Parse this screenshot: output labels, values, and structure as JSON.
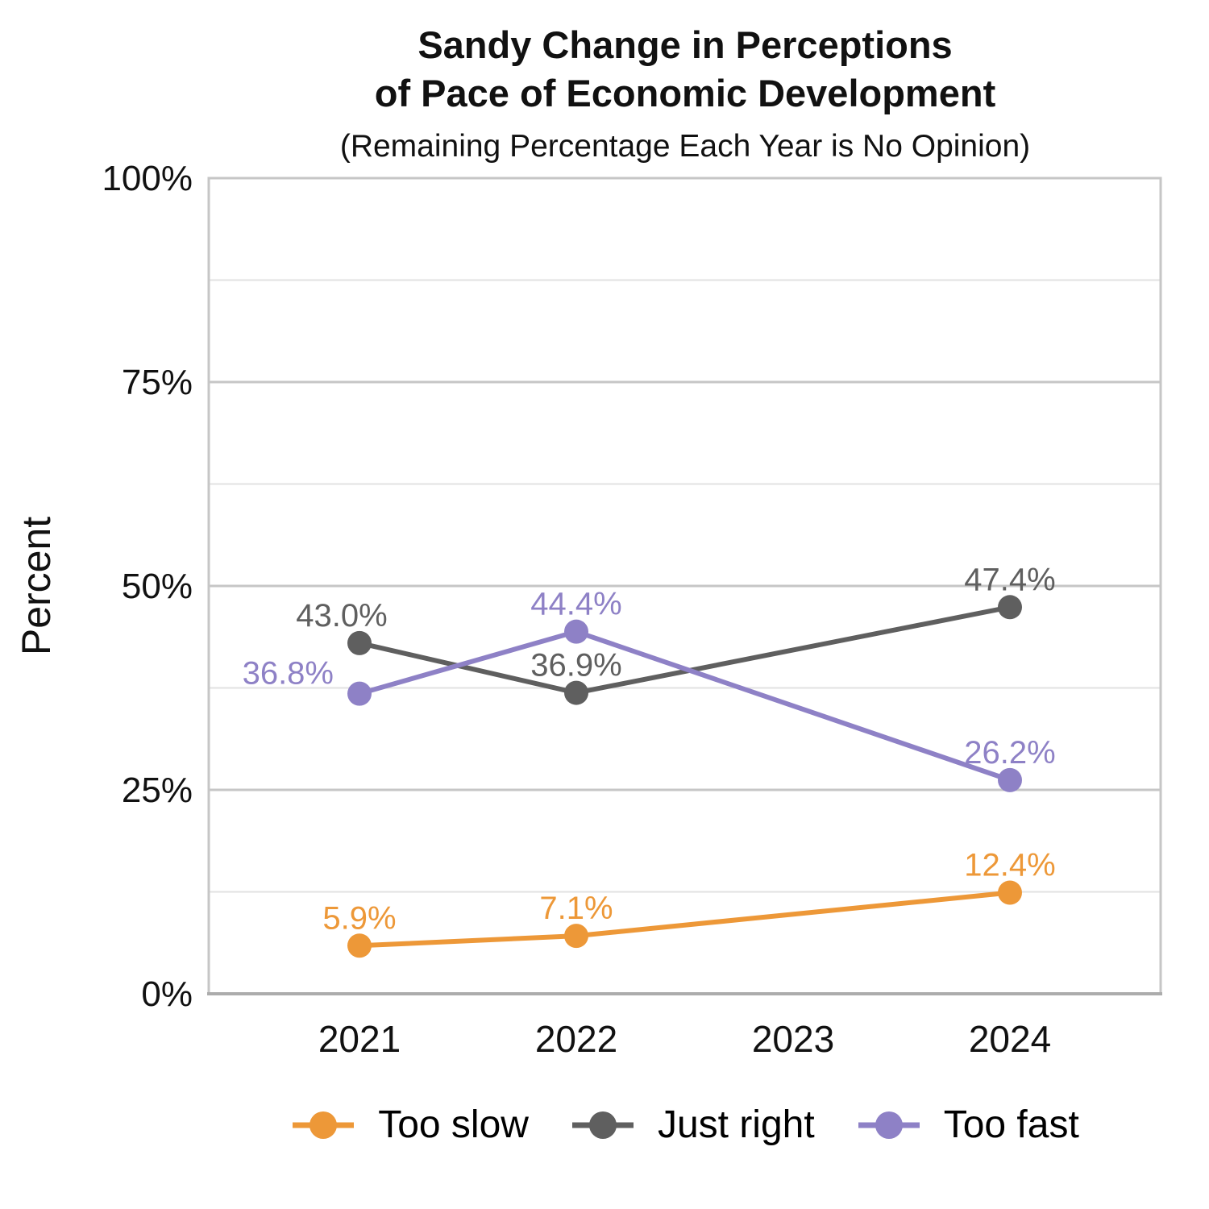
{
  "header": {
    "title_line1": "Sandy Change in Perceptions",
    "title_line2": "of Pace of Economic Development",
    "subtitle": "(Remaining Percentage Each Year is No Opinion)"
  },
  "colors": {
    "background": "#FFFFFF",
    "major_gridline": "#C6C6C6",
    "minor_gridline": "#E2E2E2",
    "panel_border": "#C6C6C6",
    "bottom_axis_line": "#ACACAC",
    "tick_label": "#111111",
    "too_slow": "#ED9838",
    "just_right": "#5F5F5F",
    "too_fast": "#8E81C6"
  },
  "chart_data": {
    "type": "line",
    "title": "Sandy Change in Perceptions of Pace of Economic Development",
    "subtitle": "(Remaining Percentage Each Year is No Opinion)",
    "xlabel": "",
    "ylabel": "Percent",
    "x_categories": [
      "2021",
      "2022",
      "2023",
      "2024"
    ],
    "ylim": [
      0,
      100
    ],
    "y_major_ticks": [
      0,
      25,
      50,
      75,
      100
    ],
    "y_tick_labels": [
      "0%",
      "25%",
      "50%",
      "75%",
      "100%"
    ],
    "y_minor_ticks": [
      12.5,
      37.5,
      62.5,
      87.5
    ],
    "grid": "horizontal-only",
    "legend_position": "bottom",
    "marker": "circle",
    "note": "no data points plotted for 2023; lines connect 2022 directly to 2024",
    "series": [
      {
        "name": "Too slow",
        "color": "#ED9838",
        "points": [
          {
            "x": "2021",
            "y": 5.9,
            "label": "5.9%"
          },
          {
            "x": "2022",
            "y": 7.1,
            "label": "7.1%"
          },
          {
            "x": "2024",
            "y": 12.4,
            "label": "12.4%"
          }
        ]
      },
      {
        "name": "Just right",
        "color": "#5F5F5F",
        "points": [
          {
            "x": "2021",
            "y": 43.0,
            "label": "43.0%",
            "label_dx": -22
          },
          {
            "x": "2022",
            "y": 36.9,
            "label": "36.9%"
          },
          {
            "x": "2024",
            "y": 47.4,
            "label": "47.4%"
          }
        ]
      },
      {
        "name": "Too fast",
        "color": "#8E81C6",
        "points": [
          {
            "x": "2021",
            "y": 36.8,
            "label": "36.8%",
            "label_side": "left"
          },
          {
            "x": "2022",
            "y": 44.4,
            "label": "44.4%"
          },
          {
            "x": "2024",
            "y": 26.2,
            "label": "26.2%"
          }
        ]
      }
    ]
  }
}
